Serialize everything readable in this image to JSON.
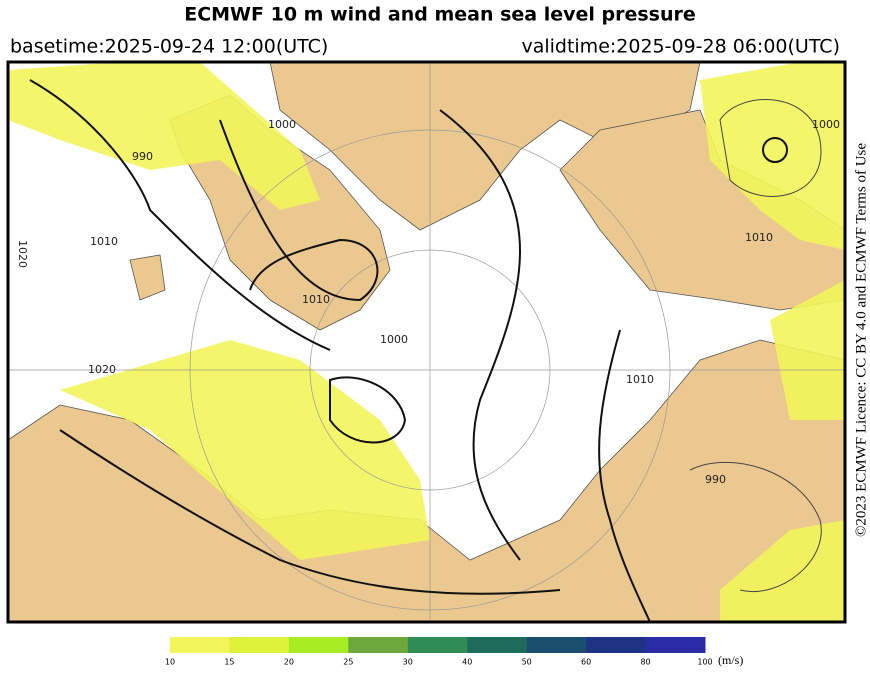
{
  "header": {
    "title": "ECMWF 10 m wind and mean sea level pressure",
    "basetime": "basetime:2025-09-24 12:00(UTC)",
    "validtime": "validtime:2025-09-28 06:00(UTC)"
  },
  "license": "©2023 ECMWF Licence: CC BY 4.0 and ECMWF Terms of Use",
  "isobar_labels": [
    "990",
    "1000",
    "1010",
    "1010",
    "1010",
    "1020",
    "1020",
    "1000",
    "1000",
    "1010",
    "990"
  ],
  "colorbar": {
    "ticks": [
      10,
      15,
      20,
      25,
      30,
      40,
      50,
      60,
      80,
      100
    ],
    "unit": "(m/s)",
    "colors": [
      "#f3f65a",
      "#def23c",
      "#a8ec24",
      "#6ca83c",
      "#2f8c55",
      "#1e6c5c",
      "#1b4e6c",
      "#1f3384",
      "#2b2ba6"
    ]
  }
}
